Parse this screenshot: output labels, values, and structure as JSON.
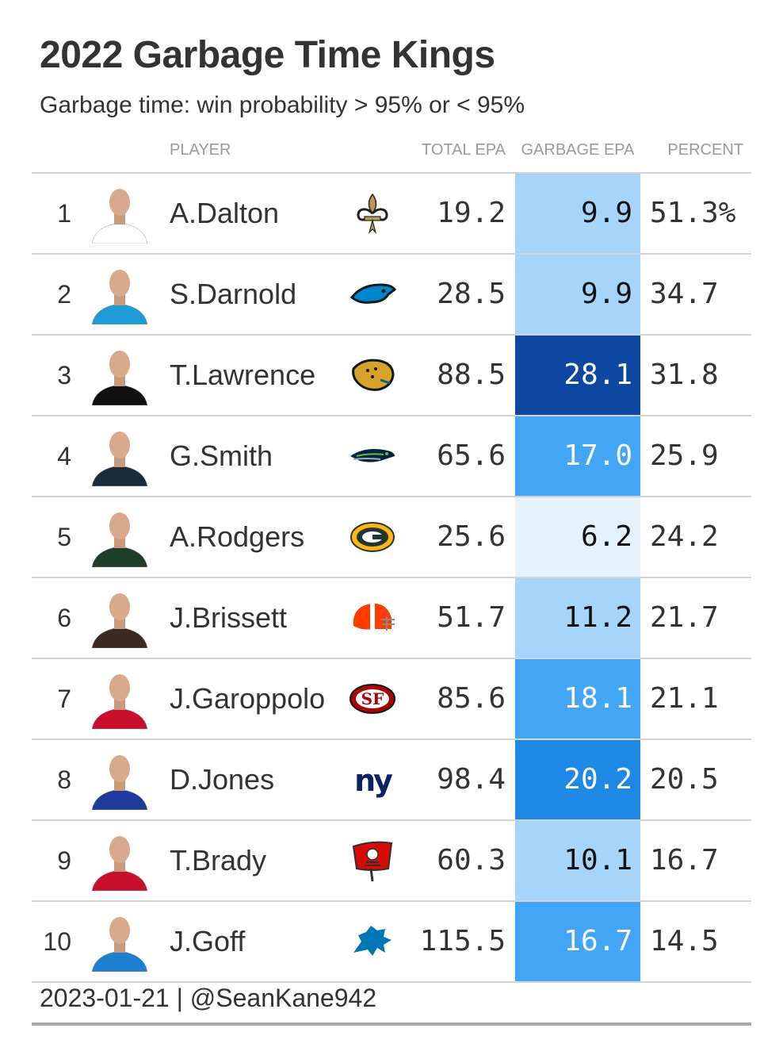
{
  "title": "2022 Garbage Time Kings",
  "subtitle": "Garbage time: win probability > 95% or < 95%",
  "columns": {
    "player": "PLAYER",
    "total_epa": "TOTAL EPA",
    "garbage_epa": "GARBAGE EPA",
    "percent": "PERCENT"
  },
  "source": "2023-01-21 | @SeanKane942",
  "garbage_scale": {
    "min": 6.2,
    "max": 28.1,
    "low_color": "#e3f2fd",
    "high_color": "#0d47a1"
  },
  "chart_data": {
    "type": "table",
    "title": "2022 Garbage Time Kings",
    "subtitle": "Garbage time: win probability > 95% or < 95%",
    "rows": [
      {
        "rank": "1",
        "player": "A.Dalton",
        "team_logo": "saints-fleur-de-lis-icon",
        "jersey": "#ffffff",
        "total_epa": "19.2",
        "garbage_epa": "9.9",
        "percent": "51.3%",
        "garbage_value": 9.9
      },
      {
        "rank": "2",
        "player": "S.Darnold",
        "team_logo": "panthers-icon",
        "jersey": "#1e9bd7",
        "total_epa": "28.5",
        "garbage_epa": "9.9",
        "percent": "34.7",
        "garbage_value": 9.9
      },
      {
        "rank": "3",
        "player": "T.Lawrence",
        "team_logo": "jaguars-icon",
        "jersey": "#111111",
        "total_epa": "88.5",
        "garbage_epa": "28.1",
        "percent": "31.8",
        "garbage_value": 28.1
      },
      {
        "rank": "4",
        "player": "G.Smith",
        "team_logo": "seahawks-icon",
        "jersey": "#1c2b3c",
        "total_epa": "65.6",
        "garbage_epa": "17.0",
        "percent": "25.9",
        "garbage_value": 17.0
      },
      {
        "rank": "5",
        "player": "A.Rodgers",
        "team_logo": "packers-g-icon",
        "jersey": "#1f3d2b",
        "total_epa": "25.6",
        "garbage_epa": "6.2",
        "percent": "24.2",
        "garbage_value": 6.2
      },
      {
        "rank": "6",
        "player": "J.Brissett",
        "team_logo": "browns-helmet-icon",
        "jersey": "#3a2a20",
        "total_epa": "51.7",
        "garbage_epa": "11.2",
        "percent": "21.7",
        "garbage_value": 11.2
      },
      {
        "rank": "7",
        "player": "J.Garoppolo",
        "team_logo": "49ers-icon",
        "jersey": "#c8102e",
        "total_epa": "85.6",
        "garbage_epa": "18.1",
        "percent": "21.1",
        "garbage_value": 18.1
      },
      {
        "rank": "8",
        "player": "D.Jones",
        "team_logo": "giants-ny-icon",
        "jersey": "#1f3a9a",
        "total_epa": "98.4",
        "garbage_epa": "20.2",
        "percent": "20.5",
        "garbage_value": 20.2
      },
      {
        "rank": "9",
        "player": "T.Brady",
        "team_logo": "buccaneers-flag-icon",
        "jersey": "#c8102e",
        "total_epa": "60.3",
        "garbage_epa": "10.1",
        "percent": "16.7",
        "garbage_value": 10.1
      },
      {
        "rank": "10",
        "player": "J.Goff",
        "team_logo": "lions-icon",
        "jersey": "#1e7fd0",
        "total_epa": "115.5",
        "garbage_epa": "16.7",
        "percent": "14.5",
        "garbage_value": 16.7
      }
    ]
  }
}
